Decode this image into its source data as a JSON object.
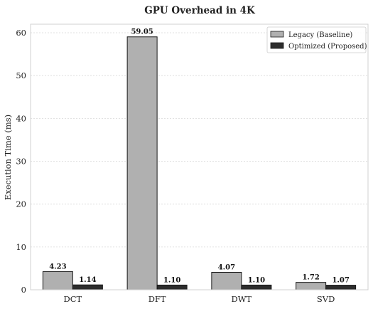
{
  "chart_data": {
    "type": "bar",
    "title": "GPU Overhead in 4K",
    "xlabel": "",
    "ylabel": "Execution Time (ms)",
    "categories": [
      "DCT",
      "DFT",
      "DWT",
      "SVD"
    ],
    "series": [
      {
        "name": "Legacy (Baseline)",
        "values": [
          4.23,
          59.05,
          4.07,
          1.72
        ],
        "color": "#b0b0b0"
      },
      {
        "name": "Optimized (Proposed)",
        "values": [
          1.14,
          1.1,
          1.1,
          1.07
        ],
        "color": "#2d2d2d"
      }
    ],
    "data_labels": [
      [
        "4.23",
        "59.05",
        "4.07",
        "1.72"
      ],
      [
        "1.14",
        "1.10",
        "1.10",
        "1.07"
      ]
    ],
    "yticks": [
      0,
      10,
      20,
      30,
      40,
      50,
      60
    ],
    "ylim": [
      0,
      62
    ],
    "grid": true,
    "legend_position": "top-right"
  }
}
